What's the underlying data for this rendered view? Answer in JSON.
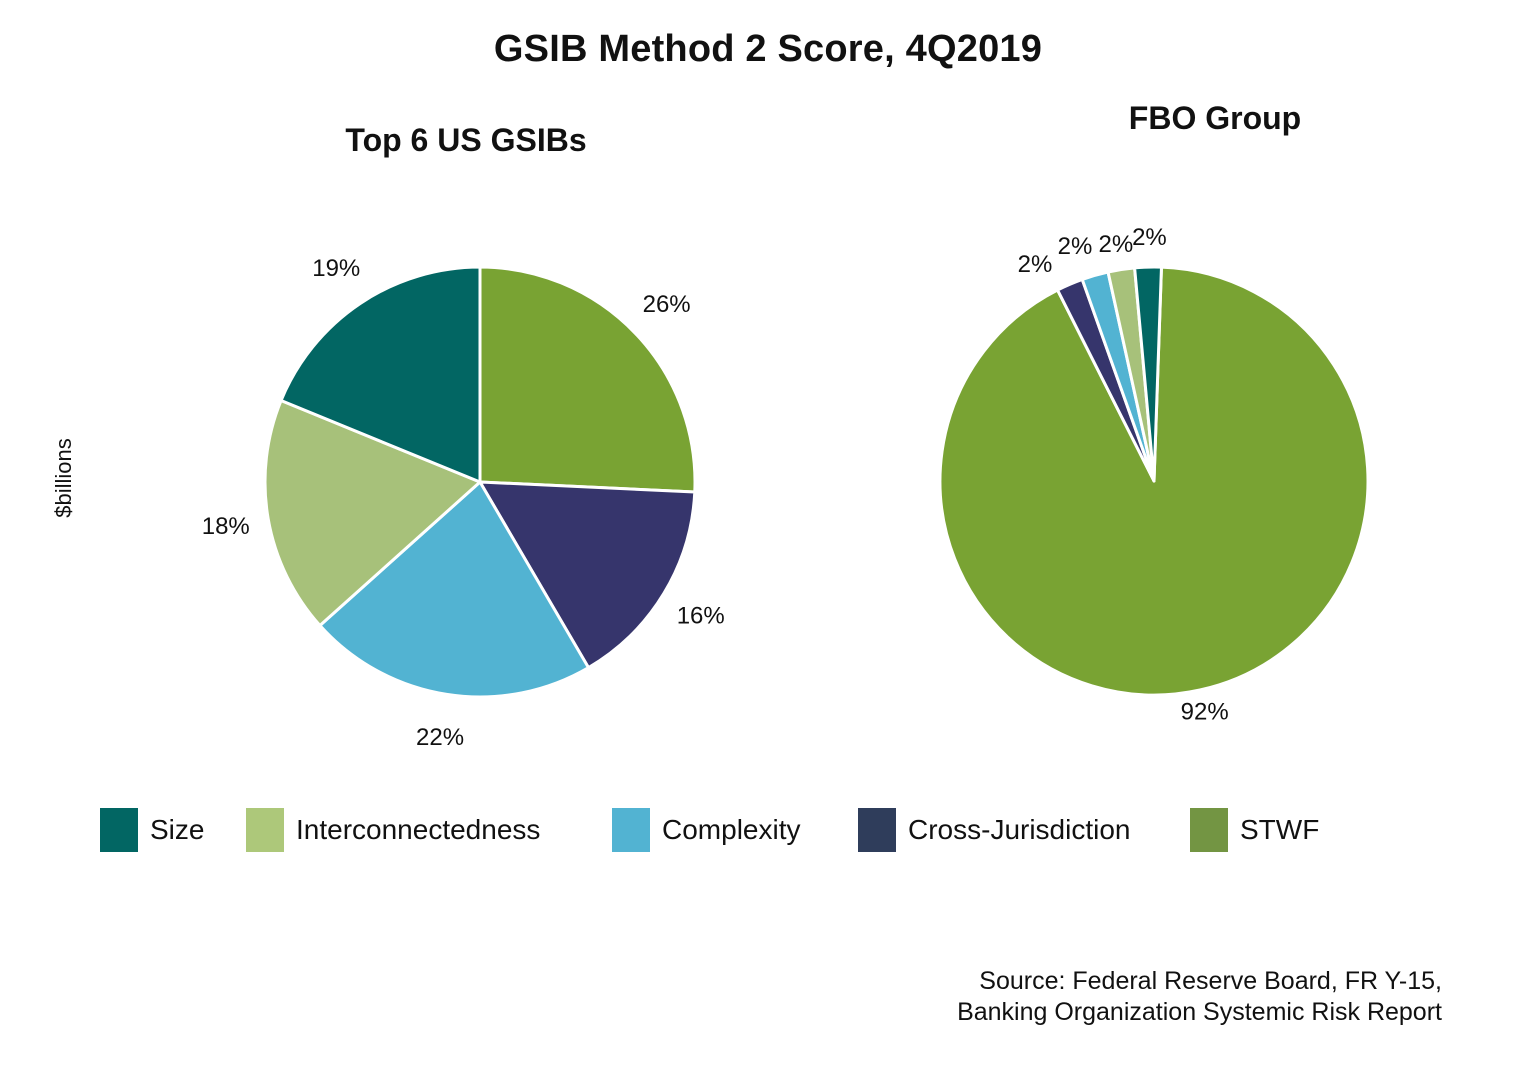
{
  "title": "GSIB Method 2 Score, 4Q2019",
  "ylabel": "$billions",
  "source": {
    "line1": "Source: Federal Reserve Board, FR Y-15,",
    "line2": "Banking Organization Systemic Risk Report"
  },
  "colors": {
    "Size": "#026663",
    "Interconnectedness": "#a7c17a",
    "Complexity": "#52b3d2",
    "Cross-Jurisdiction": "#36356c",
    "STWF": "#79a333"
  },
  "legend": [
    {
      "name": "Size",
      "color": "#026663"
    },
    {
      "name": "Interconnectedness",
      "color": "#adc87a"
    },
    {
      "name": "Complexity",
      "color": "#52b3d2"
    },
    {
      "name": "Cross-Jurisdiction",
      "color": "#2f3d5b"
    },
    {
      "name": "STWF",
      "color": "#739543"
    }
  ],
  "chart_data": [
    {
      "type": "pie",
      "title": "Top 6 US GSIBs",
      "slices": [
        {
          "name": "STWF",
          "value": 26,
          "label": "26%"
        },
        {
          "name": "Cross-Jurisdiction",
          "value": 16,
          "label": "16%"
        },
        {
          "name": "Complexity",
          "value": 22,
          "label": "22%"
        },
        {
          "name": "Interconnectedness",
          "value": 18,
          "label": "18%"
        },
        {
          "name": "Size",
          "value": 19,
          "label": "19%"
        }
      ]
    },
    {
      "type": "pie",
      "title": "FBO Group",
      "slices": [
        {
          "name": "STWF",
          "value": 92,
          "label": "92%"
        },
        {
          "name": "Cross-Jurisdiction",
          "value": 2,
          "label": "2%"
        },
        {
          "name": "Complexity",
          "value": 2,
          "label": "2%"
        },
        {
          "name": "Interconnectedness",
          "value": 2,
          "label": "2%"
        },
        {
          "name": "Size",
          "value": 2,
          "label": "2%"
        }
      ]
    }
  ]
}
